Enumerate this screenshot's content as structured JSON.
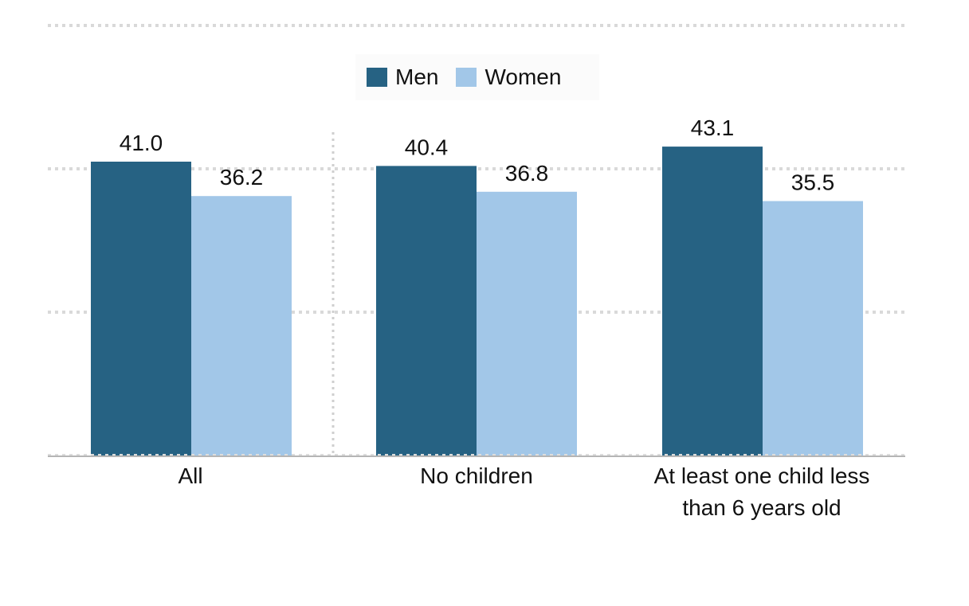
{
  "chart_data": {
    "type": "bar",
    "title": "",
    "xlabel": "",
    "ylabel": "",
    "ylim": [
      0,
      60
    ],
    "grid": true,
    "legend_position": "top-center",
    "categories": [
      "All",
      "No children",
      "At least one child less than 6 years old"
    ],
    "category_lines": [
      [
        "All"
      ],
      [
        "No children"
      ],
      [
        "At least one child less",
        "than 6 years old"
      ]
    ],
    "series": [
      {
        "name": "Men",
        "color": "#266283",
        "values": [
          41.0,
          40.4,
          43.1
        ],
        "labels": [
          "41.0",
          "40.4",
          "43.1"
        ]
      },
      {
        "name": "Women",
        "color": "#a2c7e8",
        "values": [
          36.2,
          36.8,
          35.5
        ],
        "labels": [
          "36.2",
          "36.8",
          "35.5"
        ]
      }
    ]
  }
}
